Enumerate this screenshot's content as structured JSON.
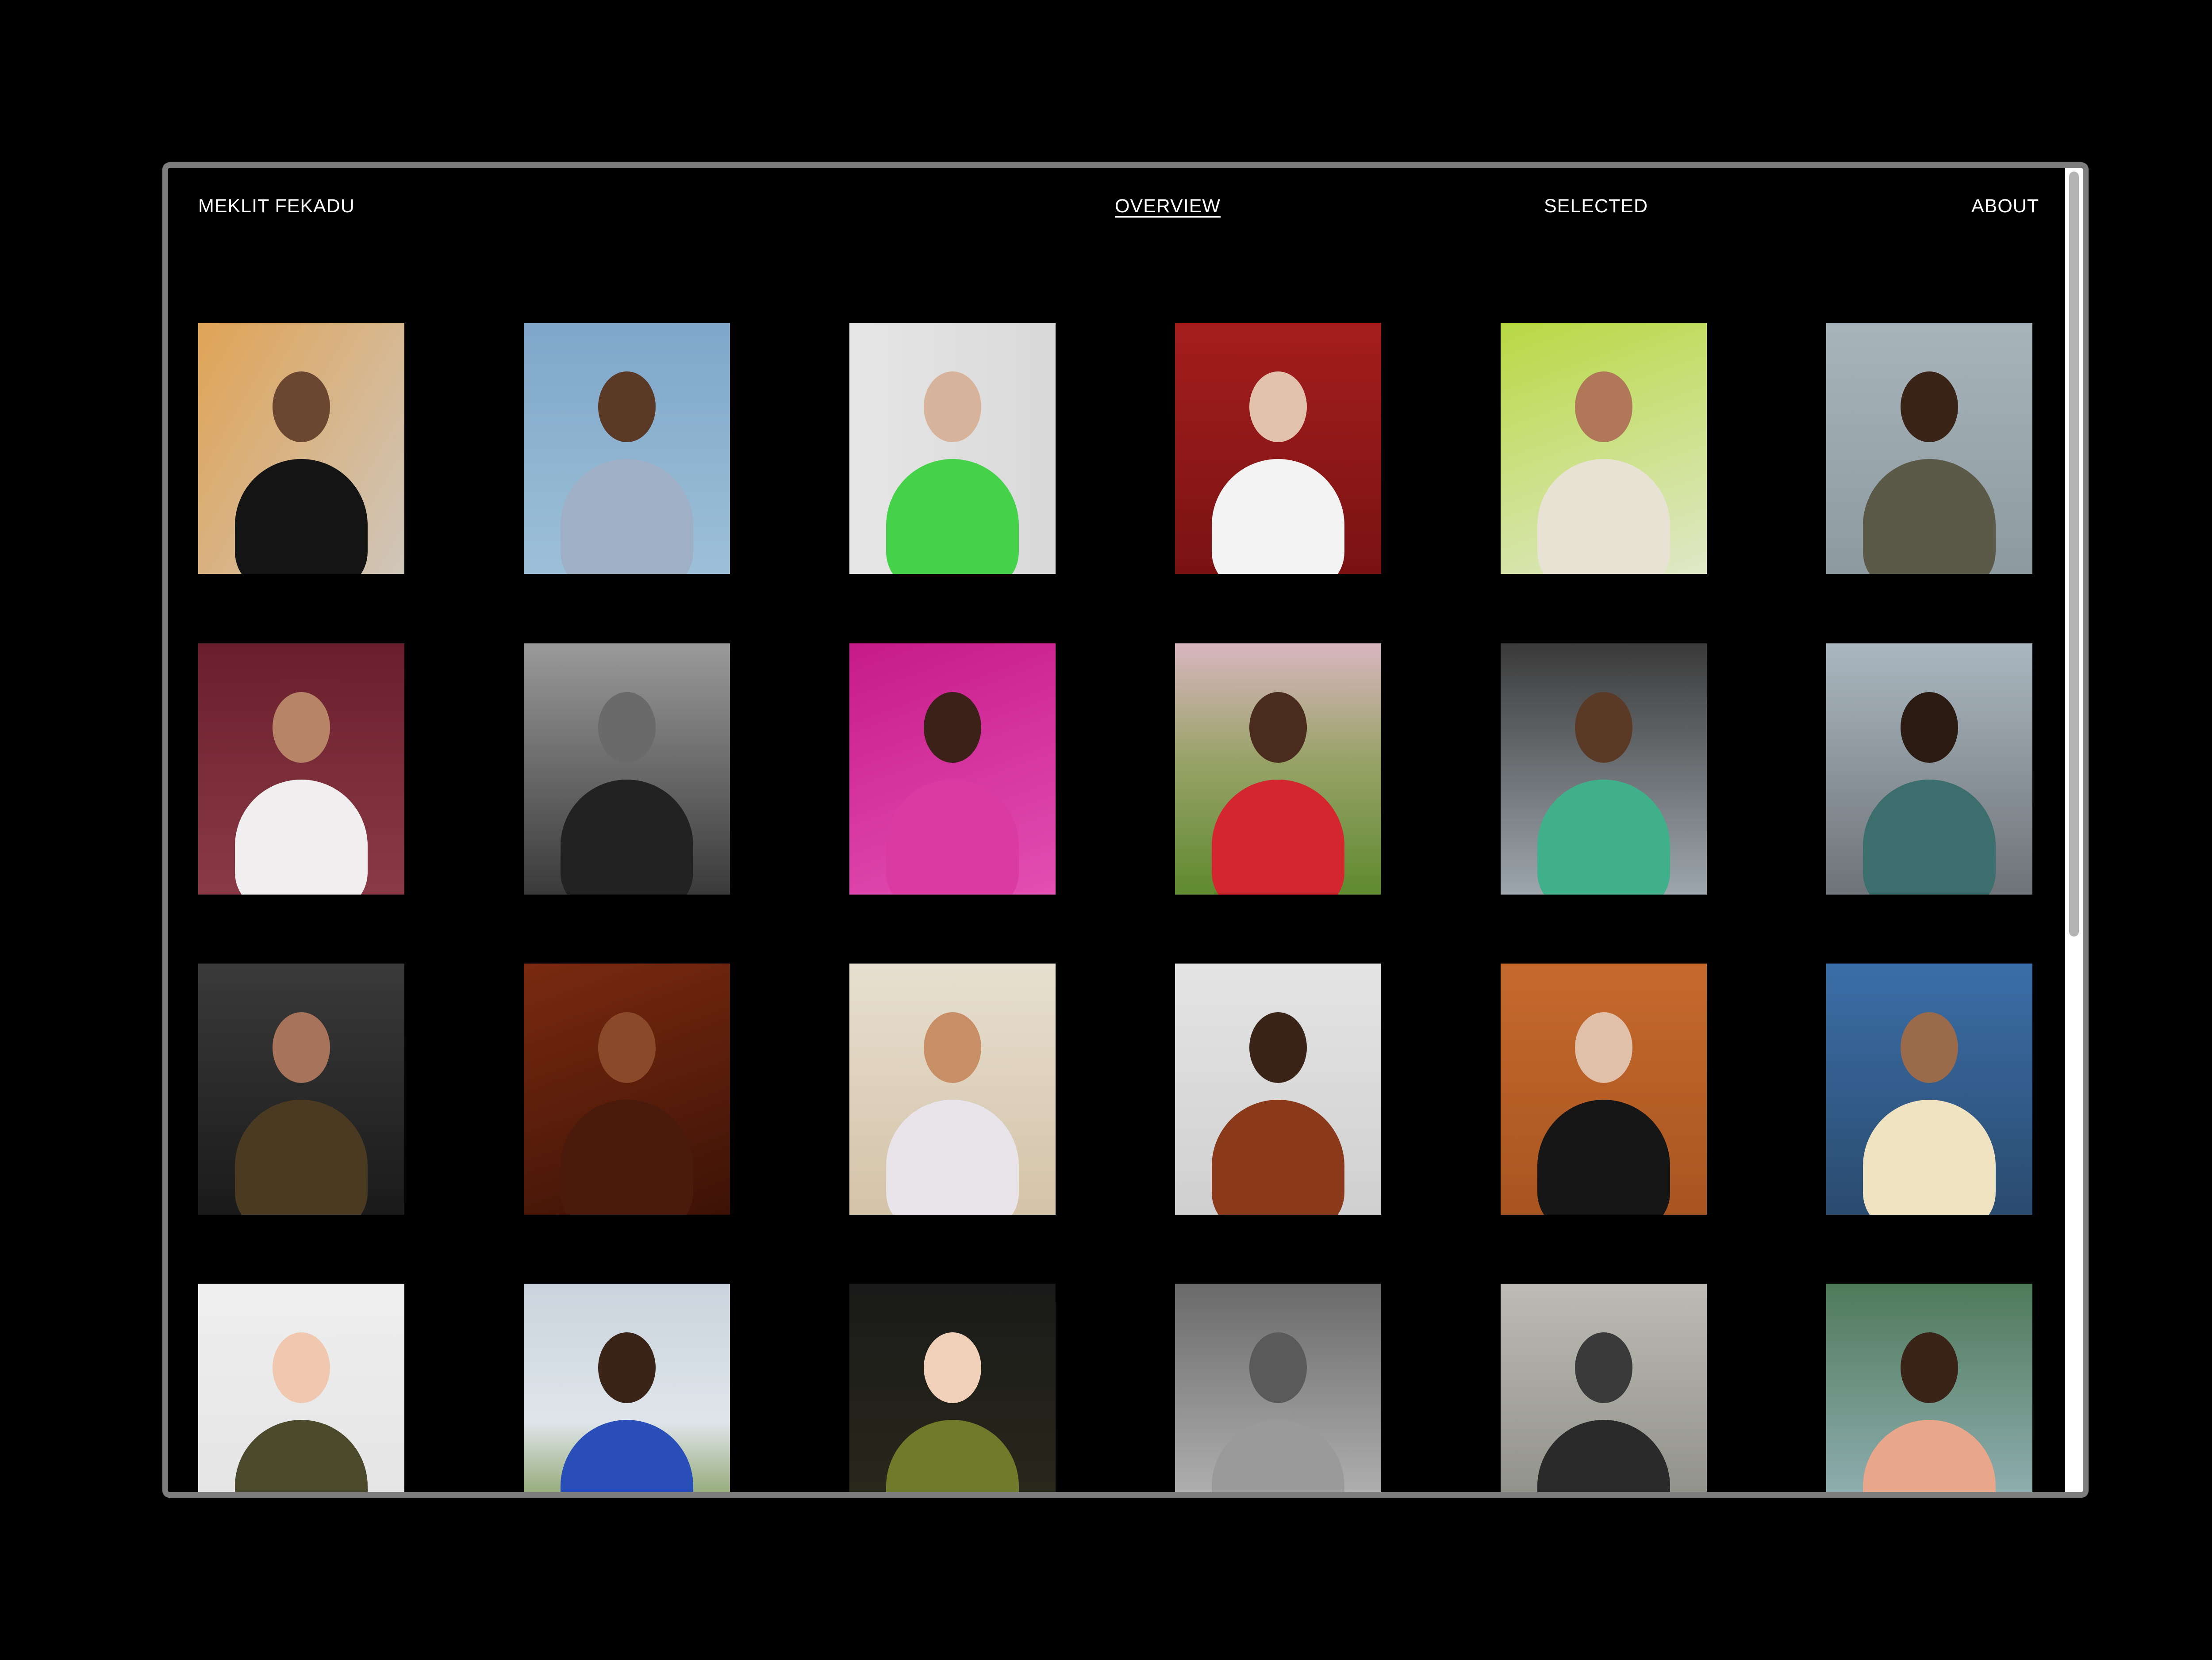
{
  "nav": {
    "brand": "MEKLIT FEKADU",
    "overview": "OVERVIEW",
    "selected": "SELECTED",
    "about": "ABOUT"
  },
  "colors": {
    "background": "#000000",
    "text": "#ffffff",
    "frame": "#7d7d7d"
  },
  "photos": [
    {
      "name": "portrait-man-black-jacket",
      "bg": "linear-gradient(120deg,#e0a355,#cfc6bb)",
      "fig": "#141414",
      "skin": "#6b4630"
    },
    {
      "name": "portrait-woman-floral-dress",
      "bg": "linear-gradient(180deg,#7fa6c9,#9cc0d8)",
      "fig": "#9fb0c6",
      "skin": "#5a3a26"
    },
    {
      "name": "portrait-women-green-top",
      "bg": "linear-gradient(90deg,#e6e6e6,#d9d9d9)",
      "fig": "#45d24a",
      "skin": "#d8b39c"
    },
    {
      "name": "portrait-woman-tiara-red",
      "bg": "linear-gradient(180deg,#a51e1e,#7a1212)",
      "fig": "#f3f3f3",
      "skin": "#e2c1ad"
    },
    {
      "name": "portrait-fisheye-lime",
      "bg": "linear-gradient(160deg,#b8d944,#dfe8c8)",
      "fig": "#e8e2d4",
      "skin": "#b07858"
    },
    {
      "name": "portrait-couple-embrace",
      "bg": "linear-gradient(180deg,#a7b4bb,#8d9aa0)",
      "fig": "#5b5a48",
      "skin": "#3a2418"
    },
    {
      "name": "portrait-two-women-white-shirts",
      "bg": "linear-gradient(180deg,#6a1e2c,#8a3a46)",
      "fig": "#f0eeee",
      "skin": "#b78468"
    },
    {
      "name": "portrait-bw-leather-jacket",
      "bg": "linear-gradient(180deg,#9a9a9a,#3a3a3a)",
      "fig": "#222",
      "skin": "#6a6a6a"
    },
    {
      "name": "portrait-pink-tulle",
      "bg": "linear-gradient(160deg,#c71a8a,#e34fb3)",
      "fig": "#d93ba3",
      "skin": "#3b2118"
    },
    {
      "name": "landscape-red-coat-mountain",
      "bg": "linear-gradient(180deg,#d9b6c0 0%,#9aa36a 45%,#5f8a2f 100%)",
      "fig": "#d3262e",
      "skin": "#4a2c1e"
    },
    {
      "name": "street-under-bridge",
      "bg": "linear-gradient(180deg,#3a3a3a,#9da6ad)",
      "fig": "#3fb08a",
      "skin": "#5a3a26"
    },
    {
      "name": "street-metallic-suit",
      "bg": "linear-gradient(180deg,#aab7c0,#6e7378)",
      "fig": "#3b6e6d",
      "skin": "#2c1b12"
    },
    {
      "name": "portrait-curly-hair-knit",
      "bg": "linear-gradient(180deg,#3a3a3a,#1a1a1a)",
      "fig": "#4a3a22",
      "skin": "#a7735a"
    },
    {
      "name": "portrait-warm-shadow",
      "bg": "linear-gradient(160deg,#7a2a10,#3c1206)",
      "fig": "#4a1a0c",
      "skin": "#8a4a2a"
    },
    {
      "name": "portrait-pastel-cutout",
      "bg": "linear-gradient(180deg,#e8dfd0,#d3c3a8)",
      "fig": "#e9e4ea",
      "skin": "#c88f66"
    },
    {
      "name": "portrait-duo-plaid",
      "bg": "linear-gradient(180deg,#e4e4e4,#d0d0d0)",
      "fig": "#8a3a1a",
      "skin": "#3a2418"
    },
    {
      "name": "portrait-two-women-orange",
      "bg": "linear-gradient(180deg,#c56a2e,#a95420)",
      "fig": "#161616",
      "skin": "#e0c0a8"
    },
    {
      "name": "portrait-cream-suit-lake",
      "bg": "linear-gradient(180deg,#3b6ea8,#2a4b6e)",
      "fig": "#efe3c2",
      "skin": "#9a6a4a"
    },
    {
      "name": "portrait-redhead-kitten",
      "bg": "linear-gradient(180deg,#efefef,#e3e3e3)",
      "fig": "#4c4a2c",
      "skin": "#f0c8b0"
    },
    {
      "name": "field-wind-turbine-jump",
      "bg": "linear-gradient(180deg,#c9d4de 0%,#dfe5ea 55%,#6c8a3a 100%)",
      "fig": "#2a4fb8",
      "skin": "#3a2418"
    },
    {
      "name": "portrait-green-fur-sunglasses",
      "bg": "linear-gradient(180deg,#1a1a1a,#2a2a1a)",
      "fig": "#6f7a2a",
      "skin": "#f0d0b8"
    },
    {
      "name": "portrait-bw-backdrop",
      "bg": "linear-gradient(180deg,#6a6a6a,#bcbcbc)",
      "fig": "#9a9a9a",
      "skin": "#5a5a5a"
    },
    {
      "name": "portrait-bw-dance",
      "bg": "linear-gradient(180deg,#bcbcb4,#8a8a84)",
      "fig": "#2a2a2a",
      "skin": "#3a3a3a"
    },
    {
      "name": "portrait-bucket-hat-lake",
      "bg": "linear-gradient(180deg,#4f7a5a,#9ab7c0)",
      "fig": "#e8a68a",
      "skin": "#3a2418"
    }
  ]
}
